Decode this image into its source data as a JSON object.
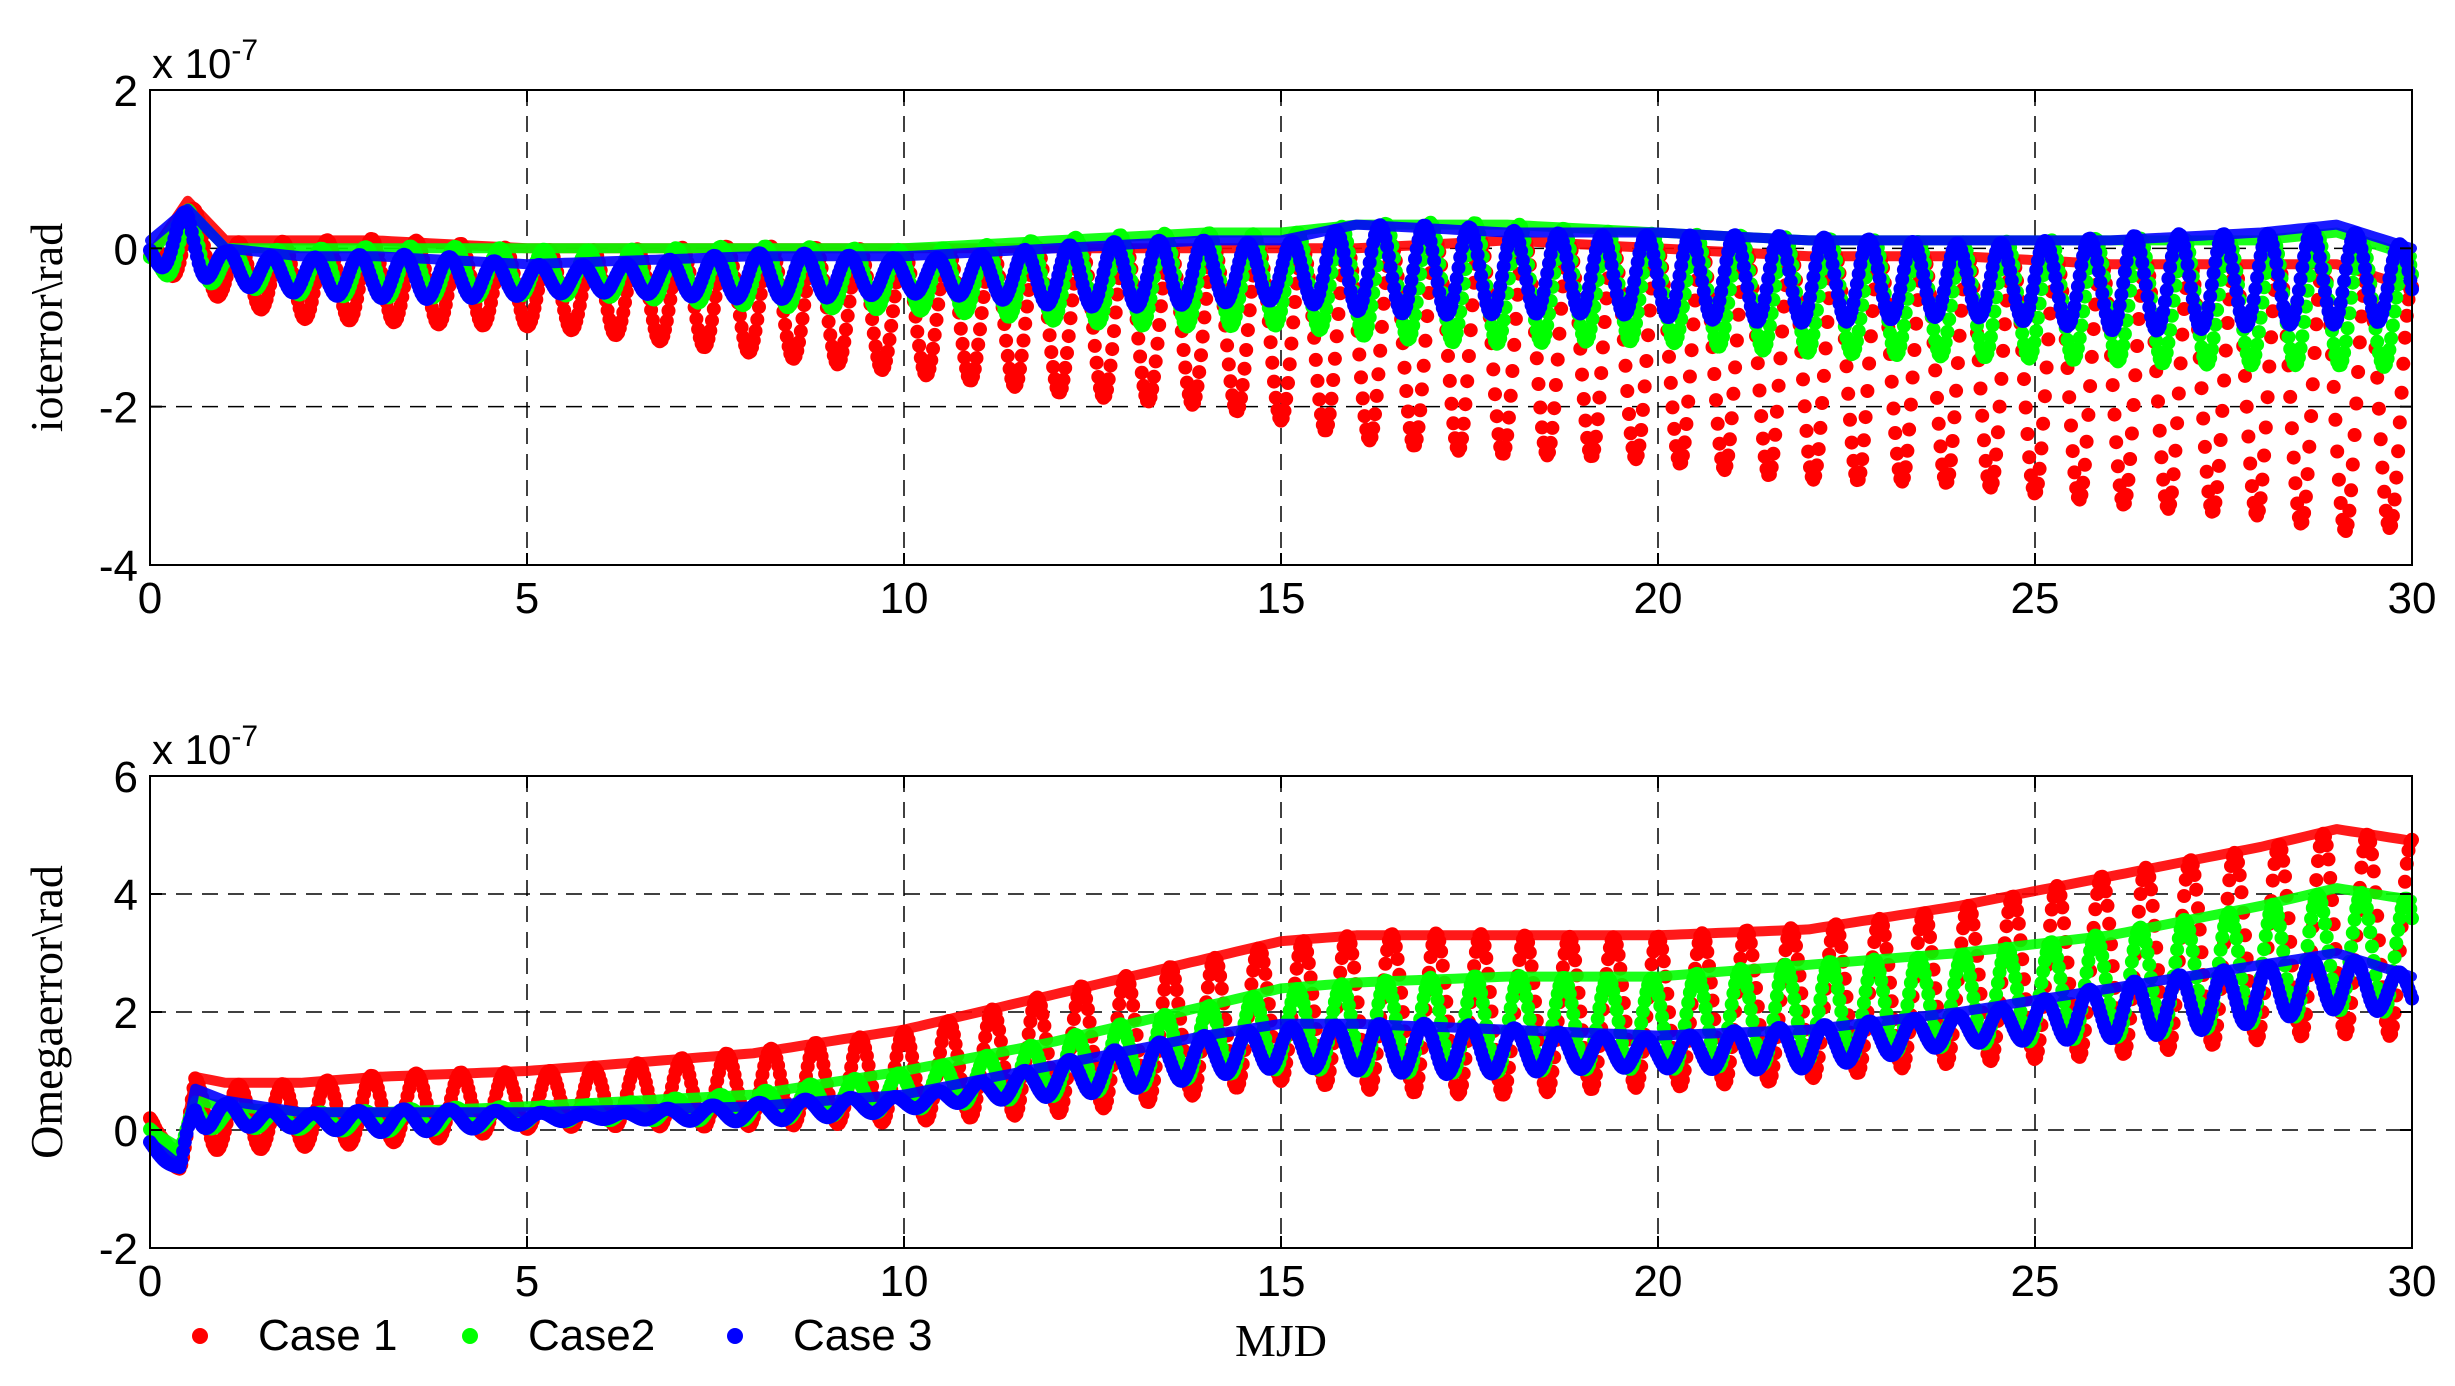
{
  "chart_data": [
    {
      "type": "scatter",
      "ylabel": "ioterror\\rad",
      "xlabel": "",
      "multiplier_base": "x 10",
      "multiplier_exp": "-7",
      "xlim": [
        0,
        30
      ],
      "ylim": [
        -4,
        2
      ],
      "xticks": [
        0,
        5,
        10,
        15,
        20,
        25,
        30
      ],
      "yticks": [
        -4,
        -2,
        0,
        2
      ],
      "xtick_labels": [
        "0",
        "5",
        "10",
        "15",
        "20",
        "25",
        "30"
      ],
      "ytick_labels": [
        "-4",
        "-2",
        "0",
        "2"
      ],
      "grid": true,
      "series": [
        {
          "name": "Case 1",
          "color": "#ff0000",
          "description": "oscillating band, upper envelope near 0, lower envelope drifting from about -0.8 to -3.6 (units 1e-7)",
          "x": [
            0,
            0.5,
            1,
            2,
            3,
            5,
            8,
            10,
            12,
            14,
            15,
            16,
            18,
            20,
            22,
            24,
            26,
            28,
            29,
            30
          ],
          "upper": [
            -0.1,
            0.6,
            0.1,
            0.1,
            0.1,
            0.0,
            0.0,
            0.0,
            0.0,
            0.0,
            0.0,
            0.0,
            0.1,
            0.0,
            -0.1,
            -0.1,
            -0.2,
            -0.2,
            -0.2,
            -0.5
          ],
          "lower": [
            -0.3,
            -0.4,
            -0.7,
            -0.9,
            -0.9,
            -1.0,
            -1.3,
            -1.6,
            -1.8,
            -2.0,
            -2.2,
            -2.4,
            -2.6,
            -2.7,
            -2.9,
            -3.0,
            -3.2,
            -3.4,
            -3.6,
            -3.5
          ]
        },
        {
          "name": "Case2",
          "color": "#00ff00",
          "description": "band from about 0 to -1.5",
          "x": [
            0,
            0.5,
            1,
            2,
            3,
            5,
            8,
            10,
            12,
            14,
            15,
            16,
            18,
            20,
            22,
            24,
            26,
            28,
            29,
            30
          ],
          "upper": [
            -0.1,
            0.5,
            0.0,
            0.0,
            0.0,
            0.0,
            0.0,
            0.0,
            0.1,
            0.2,
            0.2,
            0.3,
            0.3,
            0.2,
            0.1,
            0.1,
            0.1,
            0.1,
            0.2,
            -0.1
          ],
          "lower": [
            -0.3,
            -0.4,
            -0.5,
            -0.6,
            -0.6,
            -0.6,
            -0.7,
            -0.8,
            -0.9,
            -1.0,
            -1.0,
            -1.1,
            -1.2,
            -1.2,
            -1.3,
            -1.4,
            -1.4,
            -1.5,
            -1.5,
            -1.5
          ]
        },
        {
          "name": "Case 3",
          "color": "#0000ff",
          "description": "band from about 0.2 to -1.0",
          "x": [
            0,
            0.5,
            1,
            2,
            3,
            5,
            8,
            10,
            12,
            14,
            15,
            16,
            18,
            20,
            22,
            24,
            26,
            28,
            29,
            30
          ],
          "upper": [
            0.1,
            0.5,
            0.0,
            -0.1,
            -0.1,
            -0.2,
            -0.1,
            -0.1,
            0.0,
            0.1,
            0.1,
            0.3,
            0.2,
            0.2,
            0.1,
            0.1,
            0.1,
            0.2,
            0.3,
            0.0
          ],
          "lower": [
            -0.2,
            -0.3,
            -0.5,
            -0.6,
            -0.6,
            -0.6,
            -0.6,
            -0.6,
            -0.7,
            -0.7,
            -0.7,
            -0.8,
            -0.8,
            -0.9,
            -0.9,
            -0.9,
            -1.0,
            -1.0,
            -1.0,
            -0.9
          ]
        }
      ]
    },
    {
      "type": "scatter",
      "ylabel": "Omegaerror\\rad",
      "xlabel": "MJD",
      "multiplier_base": "x 10",
      "multiplier_exp": "-7",
      "xlim": [
        0,
        30
      ],
      "ylim": [
        -2,
        6
      ],
      "xticks": [
        0,
        5,
        10,
        15,
        20,
        25,
        30
      ],
      "yticks": [
        -2,
        0,
        2,
        4,
        6
      ],
      "xtick_labels": [
        "0",
        "5",
        "10",
        "15",
        "20",
        "25",
        "30"
      ],
      "ytick_labels": [
        "-2",
        "0",
        "2",
        "4",
        "6"
      ],
      "grid": true,
      "series": [
        {
          "name": "Case 1",
          "color": "#ff0000",
          "description": "oscillating band growing from about 0.8 to 5.1 (upper) with lower envelope rising from -0.7 to 1.6",
          "x": [
            0,
            0.4,
            0.6,
            1,
            2,
            3,
            5,
            8,
            10,
            12,
            14,
            15,
            16,
            18,
            20,
            22,
            24,
            26,
            28,
            29,
            30
          ],
          "upper": [
            0.2,
            -0.5,
            0.9,
            0.8,
            0.8,
            0.9,
            1.0,
            1.3,
            1.7,
            2.3,
            2.9,
            3.2,
            3.3,
            3.3,
            3.3,
            3.4,
            3.8,
            4.3,
            4.8,
            5.1,
            4.9
          ],
          "lower": [
            -0.3,
            -0.7,
            -0.3,
            -0.4,
            -0.3,
            -0.2,
            0.0,
            0.1,
            0.1,
            0.3,
            0.6,
            0.8,
            0.7,
            0.6,
            0.7,
            0.9,
            1.1,
            1.3,
            1.5,
            1.6,
            1.6
          ]
        },
        {
          "name": "Case2",
          "color": "#00ff00",
          "description": "band growing from about 0 to 4",
          "x": [
            0,
            0.4,
            0.6,
            1,
            2,
            3,
            5,
            8,
            10,
            12,
            14,
            15,
            16,
            18,
            20,
            22,
            24,
            26,
            28,
            29,
            30
          ],
          "upper": [
            0.0,
            -0.3,
            0.5,
            0.4,
            0.3,
            0.3,
            0.4,
            0.6,
            1.0,
            1.5,
            2.1,
            2.4,
            2.5,
            2.6,
            2.6,
            2.8,
            3.0,
            3.3,
            3.8,
            4.1,
            3.9
          ],
          "lower": [
            -0.1,
            -0.4,
            0.0,
            0.0,
            0.0,
            0.0,
            0.1,
            0.2,
            0.3,
            0.6,
            0.9,
            1.0,
            1.0,
            1.0,
            1.0,
            1.2,
            1.4,
            1.6,
            1.8,
            2.0,
            2.0
          ]
        },
        {
          "name": "Case 3",
          "color": "#0000ff",
          "description": "band growing from about 0 to 3",
          "x": [
            0,
            0.4,
            0.6,
            1,
            2,
            3,
            5,
            8,
            10,
            12,
            14,
            15,
            16,
            18,
            20,
            22,
            24,
            26,
            28,
            29,
            30
          ],
          "upper": [
            -0.2,
            -0.6,
            0.7,
            0.5,
            0.3,
            0.3,
            0.3,
            0.4,
            0.6,
            1.1,
            1.6,
            1.8,
            1.8,
            1.7,
            1.6,
            1.7,
            2.0,
            2.4,
            2.8,
            3.0,
            2.6
          ],
          "lower": [
            -0.3,
            -0.7,
            0.0,
            0.0,
            0.0,
            0.0,
            0.1,
            0.2,
            0.3,
            0.6,
            0.9,
            1.0,
            1.0,
            1.0,
            1.0,
            1.1,
            1.4,
            1.6,
            1.8,
            2.0,
            2.0
          ]
        }
      ]
    }
  ],
  "legend": {
    "entries": [
      {
        "label": "Case 1",
        "color": "#ff0000"
      },
      {
        "label": "Case2",
        "color": "#00ff00"
      },
      {
        "label": "Case 3",
        "color": "#0000ff"
      }
    ],
    "placement": "bottom-left"
  }
}
